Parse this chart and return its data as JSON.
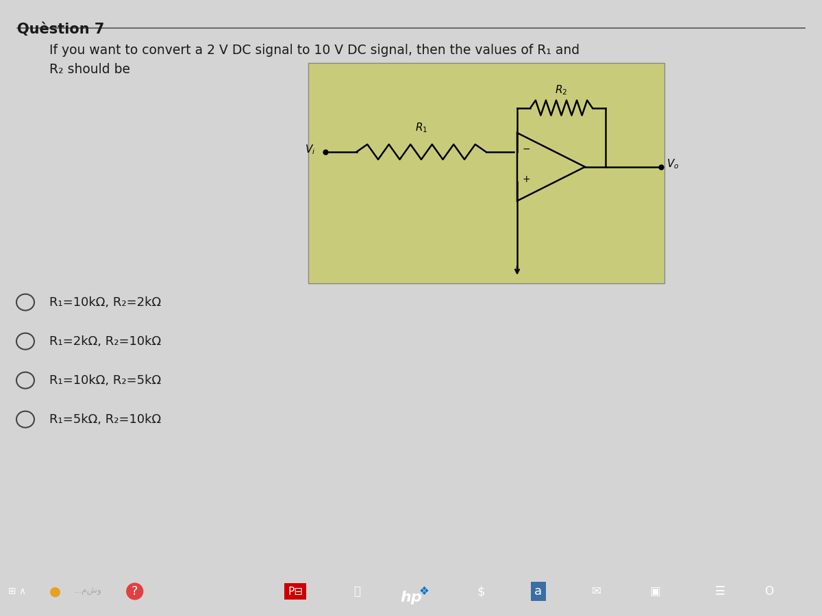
{
  "title": "Quèstion 7",
  "question_text": "If you want to convert a 2 V DC signal to 10 V DC signal, then the values of R₁ and\nR₂ should be",
  "options": [
    "R₁=10kΩ, R₂=2kΩ",
    "R₁=2kΩ, R₂=10kΩ",
    "R₁=10kΩ, R₂=5kΩ",
    "R₁=5kΩ, R₂=10kΩ"
  ],
  "bg_color": "#d4d4d4",
  "circuit_bg": "#c8cc7a",
  "text_color": "#1a1a1a",
  "taskbar_color": "#2d3e50",
  "title_underline": true,
  "fig_width": 12,
  "fig_height": 9
}
